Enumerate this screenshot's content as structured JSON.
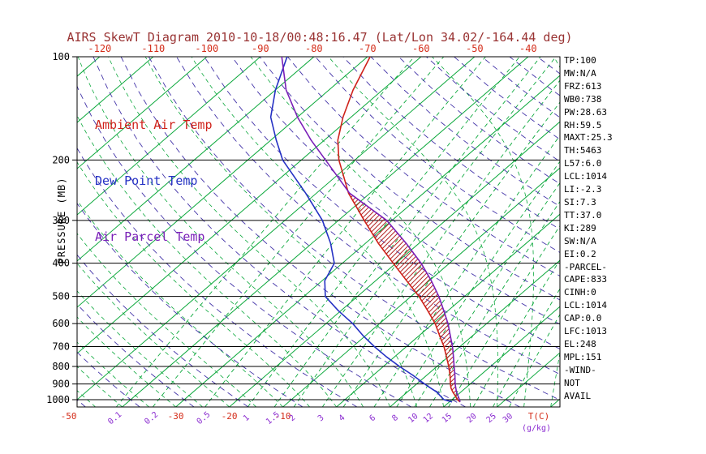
{
  "title": "AIRS SkewT Diagram 2010-10-18/00:48:16.47 (Lat/Lon 34.02/-164.44 deg)",
  "colors": {
    "title": "#993333",
    "axis_red": "#d42d1a",
    "pressure_black": "#000000",
    "isotherm_green": "#0ca83c",
    "moist_adiabat_green": "#0ca83c",
    "dry_adiabat_purple": "#4333a8",
    "mixing_label_purple": "#8a2bd0",
    "ambient_red": "#cf221a",
    "dewpoint_blue": "#2531c4",
    "parcel_purple": "#7a1fb8",
    "cape_hatch_red": "#b22222"
  },
  "legend": [
    {
      "label": "Ambient Air Temp",
      "color": "#cf221a"
    },
    {
      "label": "Dew Point Temp",
      "color": "#2531c4"
    },
    {
      "label": "Air Parcel Temp",
      "color": "#7a1fb8"
    }
  ],
  "axes": {
    "pressure_label": "PRESSURE (MB)",
    "pressure_ticks": [
      100,
      200,
      300,
      400,
      500,
      600,
      700,
      800,
      900,
      1000
    ],
    "top_temp_ticks": [
      -120,
      -110,
      -100,
      -90,
      -80,
      -70,
      -60,
      -50,
      -40
    ],
    "bottom_temp_ticks": [
      -50,
      -30,
      -20,
      -10
    ],
    "temp_unit_label": "T(C)",
    "mixing_unit_label": "(g/kg)",
    "mixing_ratio_values": [
      0.1,
      0.2,
      0.5,
      1,
      1.5,
      2,
      3,
      4,
      6,
      8,
      10,
      12,
      15,
      20,
      25,
      30
    ]
  },
  "stats_panel": [
    "TP:100",
    "MW:N/A",
    "FRZ:613",
    "WB0:738",
    "PW:28.63",
    "RH:59.5",
    "MAXT:25.3",
    "TH:5463",
    "L57:6.0",
    "LCL:1014",
    "LI:-2.3",
    "SI:7.3",
    "TT:37.0",
    "KI:289",
    "SW:N/A",
    "EI:0.2",
    "-PARCEL-",
    "CAPE:833",
    "CINH:0",
    "LCL:1014",
    "CAP:0.0",
    "LFC:1013",
    "EL:248",
    "MPL:151",
    "-WIND-",
    "NOT",
    "AVAIL"
  ],
  "chart_data": {
    "type": "line",
    "title": "AIRS SkewT Diagram 2010-10-18/00:48:16.47 (Lat/Lon 34.02/-164.44 deg)",
    "xlabel": "Temperature (C)",
    "ylabel": "Pressure (MB)",
    "y_scale": "log",
    "ylim": [
      1050,
      100
    ],
    "skew": "45deg skew-T / log-P",
    "grid": {
      "isotherms_c": {
        "from": -120,
        "to": 40,
        "step": 10,
        "style": "solid green"
      },
      "dry_adiabats_c": {
        "from": -50,
        "to": 190,
        "step": 10,
        "style": "dashed purple"
      },
      "moist_adiabats_c": {
        "from": -60,
        "to": 60,
        "step": 5,
        "style": "dashed green"
      },
      "mixing_ratio_g_kg": [
        0.1,
        0.2,
        0.5,
        1,
        1.5,
        2,
        3,
        4,
        6,
        8,
        10,
        12,
        15,
        20,
        25,
        30
      ]
    },
    "series": [
      {
        "name": "Ambient Air Temp",
        "color": "#cf221a",
        "points_p_t": [
          [
            1015,
            22
          ],
          [
            1000,
            21
          ],
          [
            975,
            19.8
          ],
          [
            950,
            18.5
          ],
          [
            925,
            17.3
          ],
          [
            900,
            16.3
          ],
          [
            850,
            14.4
          ],
          [
            800,
            12.2
          ],
          [
            750,
            9.7
          ],
          [
            700,
            7
          ],
          [
            650,
            3.8
          ],
          [
            600,
            0.4
          ],
          [
            550,
            -3.8
          ],
          [
            500,
            -8.5
          ],
          [
            450,
            -14.2
          ],
          [
            400,
            -20.5
          ],
          [
            350,
            -27.6
          ],
          [
            300,
            -35.2
          ],
          [
            250,
            -44
          ],
          [
            200,
            -53
          ],
          [
            175,
            -57.5
          ],
          [
            150,
            -61.5
          ],
          [
            125,
            -65.5
          ],
          [
            100,
            -69.5
          ]
        ]
      },
      {
        "name": "Dew Point Temp",
        "color": "#2531c4",
        "points_p_t": [
          [
            1015,
            20.5
          ],
          [
            1000,
            18.5
          ],
          [
            975,
            17
          ],
          [
            950,
            15.5
          ],
          [
            925,
            13.5
          ],
          [
            900,
            11.5
          ],
          [
            850,
            7.5
          ],
          [
            800,
            3
          ],
          [
            750,
            -1.5
          ],
          [
            700,
            -6
          ],
          [
            650,
            -10.5
          ],
          [
            600,
            -15
          ],
          [
            550,
            -20.5
          ],
          [
            500,
            -26
          ],
          [
            450,
            -29.5
          ],
          [
            400,
            -31.5
          ],
          [
            350,
            -36.5
          ],
          [
            300,
            -43
          ],
          [
            250,
            -52
          ],
          [
            200,
            -63.5
          ],
          [
            175,
            -69
          ],
          [
            150,
            -75
          ],
          [
            125,
            -80
          ],
          [
            100,
            -85
          ]
        ]
      },
      {
        "name": "Air Parcel Temp",
        "color": "#7a1fb8",
        "points_p_t": [
          [
            1015,
            22
          ],
          [
            1000,
            21.4
          ],
          [
            975,
            20.3
          ],
          [
            950,
            19.2
          ],
          [
            925,
            18.2
          ],
          [
            900,
            17.2
          ],
          [
            850,
            15.3
          ],
          [
            800,
            13.2
          ],
          [
            750,
            11
          ],
          [
            700,
            8.6
          ],
          [
            650,
            5.8
          ],
          [
            600,
            2.8
          ],
          [
            550,
            -0.8
          ],
          [
            500,
            -4.8
          ],
          [
            450,
            -9.6
          ],
          [
            400,
            -15.3
          ],
          [
            350,
            -22.4
          ],
          [
            300,
            -31
          ],
          [
            250,
            -43.8
          ],
          [
            200,
            -55.5
          ],
          [
            175,
            -62.5
          ],
          [
            150,
            -70
          ],
          [
            125,
            -78
          ],
          [
            100,
            -86
          ]
        ]
      }
    ],
    "cape_area": {
      "between": [
        "Air Parcel Temp",
        "Ambient Air Temp"
      ],
      "p_from": 1015,
      "p_to": 250,
      "hatch": "diagonal-red"
    }
  }
}
